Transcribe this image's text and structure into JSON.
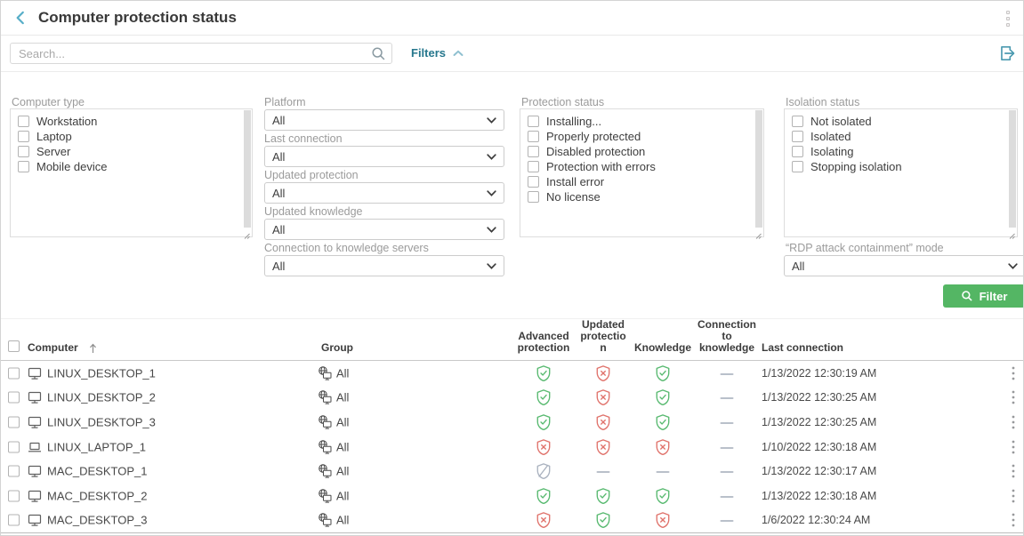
{
  "colors": {
    "accent_teal": "#26778d",
    "accent_teal_light": "#8fc0d0",
    "back_chevron": "#57aec8",
    "button_green": "#54b664",
    "icon_green": "#57b96f",
    "icon_red": "#e0726b",
    "icon_gray": "#aab2bf",
    "dash_gray": "#b9c0ca"
  },
  "header": {
    "title": "Computer protection status"
  },
  "toolbar": {
    "search_placeholder": "Search...",
    "filters_label": "Filters"
  },
  "filters": {
    "computer_type": {
      "label": "Computer type",
      "options": [
        "Workstation",
        "Laptop",
        "Server",
        "Mobile device"
      ]
    },
    "selects": [
      {
        "label": "Platform",
        "value": "All"
      },
      {
        "label": "Last connection",
        "value": "All"
      },
      {
        "label": "Updated protection",
        "value": "All"
      },
      {
        "label": "Updated knowledge",
        "value": "All"
      },
      {
        "label": "Connection to knowledge servers",
        "value": "All"
      }
    ],
    "protection_status": {
      "label": "Protection status",
      "options": [
        "Installing...",
        "Properly protected",
        "Disabled protection",
        "Protection with errors",
        "Install error",
        "No license"
      ]
    },
    "isolation_status": {
      "label": "Isolation status",
      "options": [
        "Not isolated",
        "Isolated",
        "Isolating",
        "Stopping isolation"
      ]
    },
    "rdp_mode": {
      "label": "“RDP attack containment” mode",
      "value": "All"
    },
    "filter_button_label": "Filter"
  },
  "table": {
    "headers": {
      "computer": "Computer",
      "group": "Group",
      "advanced": "Advanced\nprotection",
      "updated": "Updated\nprotectio\nn",
      "knowledge": "Knowledge",
      "connection": "Connection\nto\nknowledge",
      "last": "Last connection"
    },
    "rows": [
      {
        "computer": "LINUX_DESKTOP_1",
        "device": "desktop",
        "group": "All",
        "advanced": "ok",
        "updated": "error",
        "knowledge": "ok",
        "connection": "none",
        "last": "1/13/2022 12:30:19 AM"
      },
      {
        "computer": "LINUX_DESKTOP_2",
        "device": "desktop",
        "group": "All",
        "advanced": "ok",
        "updated": "error",
        "knowledge": "ok",
        "connection": "none",
        "last": "1/13/2022 12:30:25 AM"
      },
      {
        "computer": "LINUX_DESKTOP_3",
        "device": "desktop",
        "group": "All",
        "advanced": "ok",
        "updated": "error",
        "knowledge": "ok",
        "connection": "none",
        "last": "1/13/2022 12:30:25 AM"
      },
      {
        "computer": "LINUX_LAPTOP_1",
        "device": "laptop",
        "group": "All",
        "advanced": "error",
        "updated": "error",
        "knowledge": "error",
        "connection": "none",
        "last": "1/10/2022 12:30:18 AM"
      },
      {
        "computer": "MAC_DESKTOP_1",
        "device": "desktop",
        "group": "All",
        "advanced": "disabled",
        "updated": "none",
        "knowledge": "none",
        "connection": "none",
        "last": "1/13/2022 12:30:17 AM"
      },
      {
        "computer": "MAC_DESKTOP_2",
        "device": "desktop",
        "group": "All",
        "advanced": "ok",
        "updated": "ok",
        "knowledge": "ok",
        "connection": "none",
        "last": "1/13/2022 12:30:18 AM"
      },
      {
        "computer": "MAC_DESKTOP_3",
        "device": "desktop",
        "group": "All",
        "advanced": "error",
        "updated": "ok",
        "knowledge": "error",
        "connection": "none",
        "last": "1/6/2022 12:30:24 AM"
      }
    ]
  }
}
